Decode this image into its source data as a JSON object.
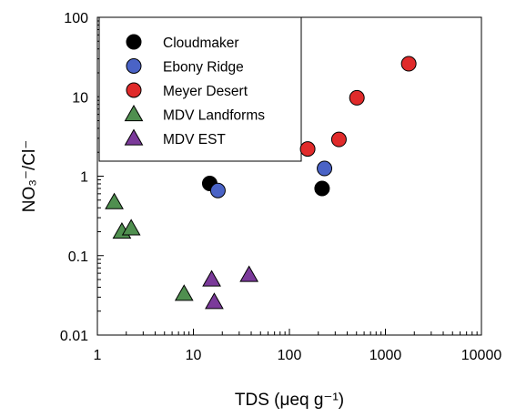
{
  "chart_data": {
    "type": "scatter",
    "title": "",
    "xlabel": "TDS (μeq g⁻¹)",
    "ylabel": "NO₃⁻/Cl⁻",
    "x_scale": "log",
    "y_scale": "log",
    "xlim": [
      1,
      10000
    ],
    "ylim": [
      0.01,
      100
    ],
    "x_ticks": [
      1,
      10,
      100,
      1000,
      10000
    ],
    "x_tick_labels": [
      "1",
      "10",
      "100",
      "1000",
      "10000"
    ],
    "y_ticks": [
      0.01,
      0.1,
      1,
      10,
      100
    ],
    "y_tick_labels": [
      "0.01",
      "0.1",
      "1",
      "10",
      "100"
    ],
    "grid": false,
    "legend_position": "top-left",
    "series": [
      {
        "name": "Cloudmaker",
        "marker": "circle",
        "color": "#000000",
        "points": [
          {
            "x": 14.8,
            "y": 0.81
          },
          {
            "x": 219,
            "y": 0.7
          }
        ]
      },
      {
        "name": "Ebony Ridge",
        "marker": "circle",
        "color": "#4a63c6",
        "points": [
          {
            "x": 18.0,
            "y": 0.66
          },
          {
            "x": 232,
            "y": 1.25
          }
        ]
      },
      {
        "name": "Meyer Desert",
        "marker": "circle",
        "color": "#e02a2a",
        "points": [
          {
            "x": 155,
            "y": 2.2
          },
          {
            "x": 328,
            "y": 2.9
          },
          {
            "x": 505,
            "y": 9.7
          },
          {
            "x": 1750,
            "y": 26
          }
        ]
      },
      {
        "name": "MDV Landforms",
        "marker": "triangle",
        "color": "#4f8f4f",
        "points": [
          {
            "x": 1.5,
            "y": 0.47
          },
          {
            "x": 1.8,
            "y": 0.2
          },
          {
            "x": 2.25,
            "y": 0.22
          },
          {
            "x": 8.0,
            "y": 0.033
          }
        ]
      },
      {
        "name": "MDV EST",
        "marker": "triangle",
        "color": "#7b3a9a",
        "points": [
          {
            "x": 15.5,
            "y": 0.05
          },
          {
            "x": 16.5,
            "y": 0.026
          },
          {
            "x": 38,
            "y": 0.057
          }
        ]
      }
    ]
  }
}
